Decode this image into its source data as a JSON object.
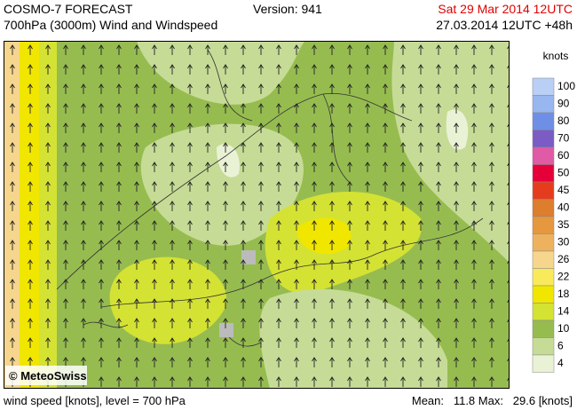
{
  "header": {
    "title": "COSMO-7 FORECAST",
    "subtitle": "700hPa (3000m) Wind and Windspeed",
    "version": "Version: 941",
    "valid": "Sat 29 Mar 2014 12UTC",
    "run": "27.03.2014 12UTC +48h"
  },
  "legend": {
    "unit": "knots",
    "levels": [
      {
        "label": "100",
        "color": "#b9cff5"
      },
      {
        "label": "90",
        "color": "#98b6f0"
      },
      {
        "label": "80",
        "color": "#6f8fe6"
      },
      {
        "label": "70",
        "color": "#7a5cc4"
      },
      {
        "label": "60",
        "color": "#e05aa6"
      },
      {
        "label": "50",
        "color": "#e6003a"
      },
      {
        "label": "45",
        "color": "#e63c1e"
      },
      {
        "label": "40",
        "color": "#dd7d2e"
      },
      {
        "label": "35",
        "color": "#e6983e"
      },
      {
        "label": "30",
        "color": "#eeb25e"
      },
      {
        "label": "26",
        "color": "#f6d68c"
      },
      {
        "label": "22",
        "color": "#f8ea5a"
      },
      {
        "label": "18",
        "color": "#f0e600"
      },
      {
        "label": "14",
        "color": "#d4e234"
      },
      {
        "label": "10",
        "color": "#96bc50"
      },
      {
        "label": "6",
        "color": "#c6dc96"
      },
      {
        "label": "4",
        "color": "#eaf2d6"
      }
    ]
  },
  "copyright": "© MeteoSwiss",
  "footer": {
    "left": "wind speed [knots], level = 700 hPa",
    "right": "Mean:   11.8 Max:   29.6 [knots]"
  }
}
